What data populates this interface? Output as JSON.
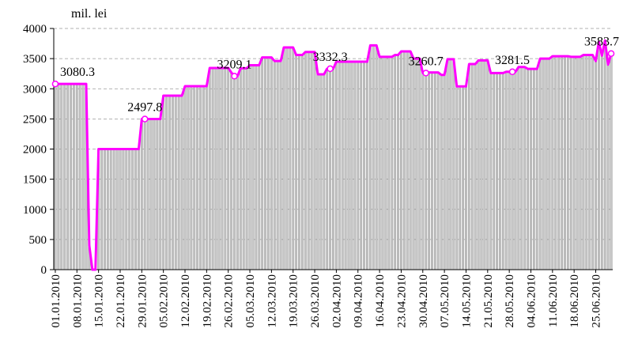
{
  "chart_data": {
    "type": "bar-line",
    "y_label": "mil. lei",
    "ylim": [
      0,
      4000
    ],
    "yticks": [
      0,
      500,
      1000,
      1500,
      2000,
      2500,
      3000,
      3500,
      4000
    ],
    "grid": true,
    "bar_color": "#c8c8c8",
    "line_color": "#ff00ff",
    "categories": [
      "01.01.2010",
      null,
      null,
      null,
      null,
      null,
      null,
      "08.01.2010",
      null,
      null,
      null,
      null,
      null,
      null,
      "15.01.2010",
      null,
      null,
      null,
      null,
      null,
      null,
      "22.01.2010",
      null,
      null,
      null,
      null,
      null,
      null,
      "29.01.2010",
      null,
      null,
      null,
      null,
      null,
      null,
      "05.02.2010",
      null,
      null,
      null,
      null,
      null,
      null,
      "12.02.2010",
      null,
      null,
      null,
      null,
      null,
      null,
      "19.02.2010",
      null,
      null,
      null,
      null,
      null,
      null,
      "26.02.2010",
      null,
      null,
      null,
      null,
      null,
      null,
      "05.03.2010",
      null,
      null,
      null,
      null,
      null,
      null,
      "12.03.2010",
      null,
      null,
      null,
      null,
      null,
      null,
      "19.03.2010",
      null,
      null,
      null,
      null,
      null,
      null,
      "26.03.2010",
      null,
      null,
      null,
      null,
      null,
      null,
      "02.04.2010",
      null,
      null,
      null,
      null,
      null,
      null,
      "09.04.2010",
      null,
      null,
      null,
      null,
      null,
      null,
      "16.04.2010",
      null,
      null,
      null,
      null,
      null,
      null,
      "23.04.2010",
      null,
      null,
      null,
      null,
      null,
      null,
      "30.04.2010",
      null,
      null,
      null,
      null,
      null,
      null,
      "07.05.2010",
      null,
      null,
      null,
      null,
      null,
      null,
      "14.05.2010",
      null,
      null,
      null,
      null,
      null,
      null,
      "21.05.2010",
      null,
      null,
      null,
      null,
      null,
      null,
      "28.05.2010",
      null,
      null,
      null,
      null,
      null,
      null,
      "04.06.2010",
      null,
      null,
      null,
      null,
      null,
      null,
      "11.06.2010",
      null,
      null,
      null,
      null,
      null,
      null,
      "18.06.2010",
      null,
      null,
      null,
      null,
      null,
      null,
      "25.06.2010",
      null,
      null,
      null,
      null,
      null
    ],
    "values": [
      3080.3,
      3080.3,
      3080.3,
      3080.3,
      3080.3,
      3080.3,
      3080.3,
      3080.3,
      3080.3,
      3080.3,
      3080.3,
      400,
      0,
      0,
      2000,
      2000,
      2000,
      2000,
      2000,
      2000,
      2000,
      2000,
      2000,
      2000,
      2000,
      2000,
      2000,
      2000,
      2497.8,
      2497.8,
      2497.8,
      2497.8,
      2497.8,
      2497.8,
      2497.8,
      2885,
      2885,
      2885,
      2885,
      2885,
      2885,
      2885,
      3043,
      3043,
      3043,
      3043,
      3043,
      3043,
      3043,
      3043,
      3344,
      3344,
      3344,
      3344,
      3344,
      3344,
      3344,
      3270,
      3209.1,
      3209.1,
      3340,
      3340,
      3340,
      3390,
      3390,
      3390,
      3390,
      3520,
      3520,
      3520,
      3520,
      3460,
      3460,
      3460,
      3685,
      3685,
      3685,
      3685,
      3560,
      3560,
      3560,
      3610,
      3610,
      3610,
      3610,
      3240,
      3240,
      3240,
      3332.3,
      3332.3,
      3332.3,
      3450,
      3450,
      3450,
      3450,
      3450,
      3450,
      3450,
      3450,
      3450,
      3450,
      3450,
      3720,
      3720,
      3720,
      3530,
      3530,
      3530,
      3530,
      3530,
      3560,
      3560,
      3620,
      3620,
      3620,
      3620,
      3500,
      3500,
      3500,
      3260.7,
      3260.7,
      3270,
      3270,
      3270,
      3270,
      3230,
      3230,
      3490,
      3490,
      3490,
      3040,
      3040,
      3040,
      3040,
      3410,
      3410,
      3410,
      3470,
      3470,
      3470,
      3470,
      3260,
      3260,
      3260,
      3260,
      3260,
      3281.5,
      3281.5,
      3281.5,
      3281.5,
      3360,
      3360,
      3360,
      3330,
      3330,
      3330,
      3330,
      3500,
      3500,
      3500,
      3500,
      3540,
      3540,
      3540,
      3540,
      3540,
      3540,
      3530,
      3530,
      3530,
      3530,
      3560,
      3560,
      3560,
      3560,
      3460,
      3780,
      3550,
      3800,
      3400,
      3583.7
    ],
    "value_labels": [
      "3080.3",
      null,
      null,
      null,
      null,
      null,
      null,
      null,
      null,
      null,
      null,
      null,
      null,
      null,
      null,
      null,
      null,
      null,
      null,
      null,
      null,
      null,
      null,
      null,
      null,
      null,
      null,
      null,
      null,
      "2497.8",
      null,
      null,
      null,
      null,
      null,
      null,
      null,
      null,
      null,
      null,
      null,
      null,
      null,
      null,
      null,
      null,
      null,
      null,
      null,
      null,
      null,
      null,
      null,
      null,
      null,
      null,
      null,
      null,
      "3209.1",
      null,
      null,
      null,
      null,
      null,
      null,
      null,
      null,
      null,
      null,
      null,
      null,
      null,
      null,
      null,
      null,
      null,
      null,
      null,
      null,
      null,
      null,
      null,
      null,
      null,
      null,
      null,
      null,
      null,
      null,
      "3332.3",
      null,
      null,
      null,
      null,
      null,
      null,
      null,
      null,
      null,
      null,
      null,
      null,
      null,
      null,
      null,
      null,
      null,
      null,
      null,
      null,
      null,
      null,
      null,
      null,
      null,
      null,
      null,
      null,
      null,
      null,
      "3260.7",
      null,
      null,
      null,
      null,
      null,
      null,
      null,
      null,
      null,
      null,
      null,
      null,
      null,
      null,
      null,
      null,
      null,
      null,
      null,
      null,
      null,
      null,
      null,
      null,
      null,
      null,
      null,
      "3281.5",
      null,
      null,
      null,
      null,
      null,
      null,
      null,
      null,
      null,
      null,
      null,
      null,
      null,
      null,
      null,
      null,
      null,
      null,
      null,
      null,
      null,
      null,
      null,
      null,
      null,
      null,
      null,
      null,
      null,
      null,
      null,
      "3583.7"
    ]
  }
}
